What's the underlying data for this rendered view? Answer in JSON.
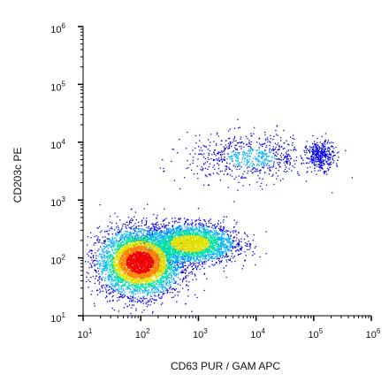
{
  "chart_data": {
    "type": "scatter",
    "title": "",
    "xlabel": "CD63 PUR / GAM APC",
    "ylabel": "CD203c PE",
    "x_scale": "log",
    "y_scale": "log",
    "xlim": [
      10,
      1000000
    ],
    "ylim": [
      10,
      1000000
    ],
    "x_ticks": [
      {
        "base": "10",
        "exp": "1"
      },
      {
        "base": "10",
        "exp": "2"
      },
      {
        "base": "10",
        "exp": "3"
      },
      {
        "base": "10",
        "exp": "4"
      },
      {
        "base": "10",
        "exp": "5"
      },
      {
        "base": "10",
        "exp": "6"
      }
    ],
    "y_ticks": [
      {
        "base": "10",
        "exp": "1"
      },
      {
        "base": "10",
        "exp": "2"
      },
      {
        "base": "10",
        "exp": "3"
      },
      {
        "base": "10",
        "exp": "4"
      },
      {
        "base": "10",
        "exp": "5"
      },
      {
        "base": "10",
        "exp": "6"
      }
    ],
    "grid": false,
    "legend": "none",
    "density_colormap": [
      "#0000ee",
      "#00b0ff",
      "#00e0a0",
      "#e0e000",
      "#ff8000",
      "#ee0000"
    ],
    "populations": [
      {
        "x_center": 95,
        "y_center": 85,
        "x_spread_decades": 0.35,
        "y_spread_decades": 0.28,
        "weight": 0.55
      },
      {
        "x_center": 700,
        "y_center": 180,
        "x_spread_decades": 0.4,
        "y_spread_decades": 0.17,
        "weight": 0.33
      },
      {
        "x_center": 8000,
        "y_center": 5500,
        "x_spread_decades": 0.55,
        "y_spread_decades": 0.2,
        "weight": 0.08
      },
      {
        "x_center": 130000,
        "y_center": 6000,
        "x_spread_decades": 0.12,
        "y_spread_decades": 0.12,
        "weight": 0.04
      }
    ]
  }
}
